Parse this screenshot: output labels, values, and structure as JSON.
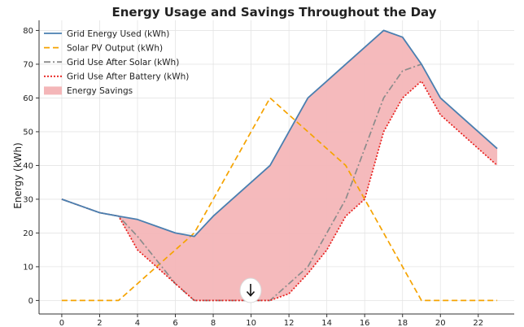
{
  "chart_data": {
    "type": "line",
    "title": "Energy Usage and Savings Throughout the Day",
    "xlabel": "",
    "ylabel": "Energy (kWh)",
    "xlim": [
      -1.2,
      23.9
    ],
    "ylim": [
      -4,
      83
    ],
    "xticks": [
      0,
      2,
      4,
      6,
      8,
      10,
      12,
      14,
      16,
      18,
      20,
      22
    ],
    "yticks": [
      0,
      10,
      20,
      30,
      40,
      50,
      60,
      70,
      80
    ],
    "grid": true,
    "legend_position": "top-left",
    "x": [
      0,
      1,
      2,
      3,
      4,
      5,
      6,
      7,
      8,
      9,
      10,
      11,
      12,
      13,
      14,
      15,
      16,
      17,
      18,
      19,
      20,
      21,
      22,
      23
    ],
    "series": [
      {
        "name": "Grid Energy Used (kWh)",
        "style": "solid",
        "color": "#4a7fb0",
        "values": [
          30,
          28,
          26,
          25,
          24,
          22,
          20,
          19,
          25,
          30,
          35,
          40,
          50,
          60,
          65,
          70,
          75,
          80,
          78,
          70,
          60,
          55,
          50,
          45
        ]
      },
      {
        "name": "Solar PV Output (kWh)",
        "style": "dashed",
        "color": "#f5a300",
        "values": [
          0,
          0,
          0,
          0,
          5,
          10,
          15,
          20,
          30,
          40,
          50,
          60,
          55,
          50,
          45,
          40,
          30,
          20,
          10,
          0,
          0,
          0,
          0,
          0
        ]
      },
      {
        "name": "Grid Use After Solar (kWh)",
        "style": "dashdot",
        "color": "#8c8c8c",
        "values": [
          30,
          28,
          26,
          25,
          19,
          12,
          5,
          0,
          0,
          0,
          0,
          0,
          5,
          10,
          20,
          30,
          45,
          60,
          68,
          70,
          null,
          null,
          null,
          null
        ]
      },
      {
        "name": "Grid Use After Battery (kWh)",
        "style": "dotted",
        "color": "#e8201d",
        "values": [
          30,
          28,
          26,
          25,
          15,
          10,
          5,
          0,
          0,
          0,
          0,
          0,
          2,
          8,
          15,
          25,
          30,
          50,
          60,
          65,
          55,
          50,
          45,
          40
        ]
      }
    ],
    "fill": {
      "name": "Energy Savings",
      "color": "#f4b6b8",
      "between": [
        "Grid Energy Used (kWh)",
        "Grid Use After Battery (kWh)"
      ]
    },
    "colors": {
      "background": "#ffffff",
      "grid": "#e4e4e4",
      "axis": "#333333"
    }
  }
}
